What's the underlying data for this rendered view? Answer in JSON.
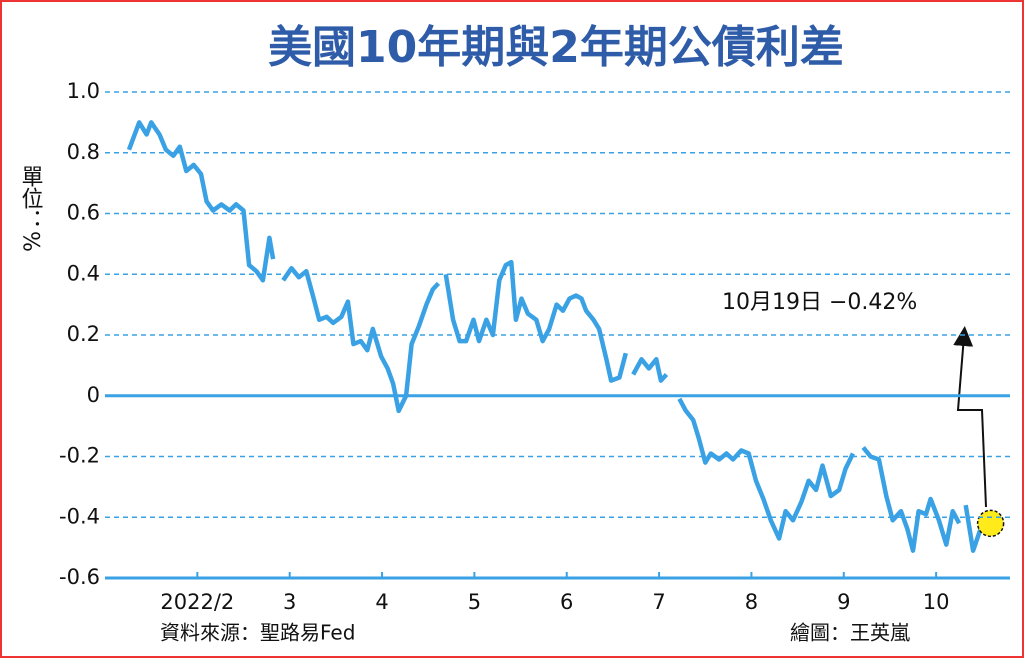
{
  "chart_data": {
    "type": "line",
    "title": "美國10年期與2年期公債利差",
    "y_axis_label": "單位：%",
    "source": "資料來源：聖路易Fed",
    "credit": "繪圖：王英嵐",
    "annotation": "10月19日 −0.42%",
    "color": "#3aa2e4",
    "xlim": [
      1,
      10.8
    ],
    "xticks": [
      {
        "value": 2,
        "label": "2022/2"
      },
      3,
      4,
      5,
      6,
      7,
      8,
      9,
      10
    ],
    "ylim": [
      -0.6,
      1.0
    ],
    "yticks": [
      {
        "value": 1,
        "label": "1.0"
      },
      0.8,
      0.6,
      0.4,
      0.2,
      0,
      -0.2,
      -0.4,
      -0.6
    ],
    "grid": true,
    "x": [
      1.26,
      1.37,
      1.45,
      1.5,
      1.59,
      1.66,
      1.74,
      1.81,
      1.88,
      1.96,
      2.04,
      2.1,
      2.17,
      2.26,
      2.35,
      2.42,
      2.5,
      2.56,
      2.64,
      2.71,
      2.78,
      2.82,
      null,
      2.93,
      3.02,
      3.1,
      3.18,
      3.26,
      3.32,
      3.4,
      3.47,
      3.56,
      3.63,
      3.69,
      3.77,
      3.84,
      3.9,
      3.99,
      4.06,
      4.12,
      4.18,
      4.26,
      4.32,
      4.4,
      4.48,
      4.55,
      4.61,
      null,
      4.69,
      4.77,
      4.84,
      4.91,
      4.99,
      5.05,
      5.13,
      5.2,
      5.27,
      5.34,
      5.4,
      5.45,
      5.51,
      5.58,
      5.67,
      5.74,
      5.81,
      5.89,
      5.96,
      6.03,
      6.1,
      6.16,
      6.21,
      6.29,
      6.35,
      6.43,
      6.48,
      6.57,
      6.64,
      null,
      6.72,
      6.81,
      6.89,
      6.97,
      7.02,
      7.08,
      null,
      7.22,
      7.29,
      7.37,
      7.43,
      7.5,
      7.56,
      7.65,
      7.73,
      7.8,
      7.89,
      7.97,
      8.05,
      8.13,
      8.21,
      8.3,
      8.37,
      8.45,
      8.54,
      8.62,
      8.7,
      8.77,
      8.86,
      8.95,
      9.02,
      9.1,
      null,
      9.21,
      9.29,
      9.38,
      9.46,
      9.53,
      9.62,
      9.69,
      9.75,
      9.81,
      9.89,
      9.94,
      10.03,
      10.11,
      10.18,
      10.25,
      null,
      10.32,
      10.4,
      10.48,
      10.59
    ],
    "values": [
      0.81,
      0.9,
      0.86,
      0.9,
      0.86,
      0.81,
      0.79,
      0.82,
      0.74,
      0.76,
      0.73,
      0.64,
      0.61,
      0.63,
      0.61,
      0.63,
      0.61,
      0.43,
      0.41,
      0.38,
      0.52,
      0.45,
      null,
      0.38,
      0.42,
      0.39,
      0.41,
      0.32,
      0.25,
      0.26,
      0.24,
      0.26,
      0.31,
      0.17,
      0.18,
      0.15,
      0.22,
      0.13,
      0.09,
      0.04,
      -0.05,
      0.0,
      0.17,
      0.23,
      0.3,
      0.35,
      0.37,
      null,
      0.4,
      0.25,
      0.18,
      0.18,
      0.25,
      0.18,
      0.25,
      0.2,
      0.38,
      0.43,
      0.44,
      0.25,
      0.32,
      0.27,
      0.25,
      0.18,
      0.22,
      0.3,
      0.28,
      0.32,
      0.33,
      0.32,
      0.28,
      0.25,
      0.22,
      0.12,
      0.05,
      0.06,
      0.14,
      null,
      0.07,
      0.12,
      0.09,
      0.12,
      0.05,
      0.07,
      null,
      -0.01,
      -0.05,
      -0.08,
      -0.14,
      -0.22,
      -0.19,
      -0.21,
      -0.19,
      -0.21,
      -0.18,
      -0.19,
      -0.28,
      -0.34,
      -0.41,
      -0.47,
      -0.38,
      -0.41,
      -0.35,
      -0.28,
      -0.31,
      -0.23,
      -0.33,
      -0.31,
      -0.24,
      -0.19,
      null,
      -0.17,
      -0.2,
      -0.21,
      -0.33,
      -0.41,
      -0.38,
      -0.44,
      -0.51,
      -0.38,
      -0.39,
      -0.34,
      -0.41,
      -0.49,
      -0.38,
      -0.42,
      null,
      -0.36,
      -0.51,
      -0.44,
      -0.42
    ]
  }
}
